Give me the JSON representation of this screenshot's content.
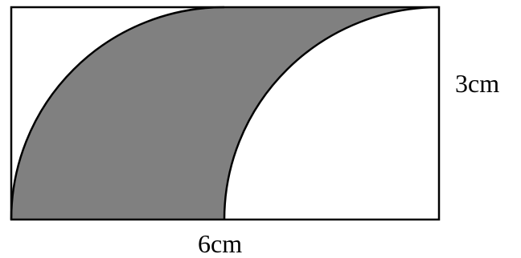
{
  "labels": {
    "height": "3cm",
    "width": "6cm"
  },
  "colors": {
    "stroke": "#000000",
    "shaded": "#808080",
    "background": "#ffffff"
  },
  "shape": {
    "rectangle_width_cm": 6,
    "rectangle_height_cm": 3,
    "arc_radius_cm": 3
  }
}
